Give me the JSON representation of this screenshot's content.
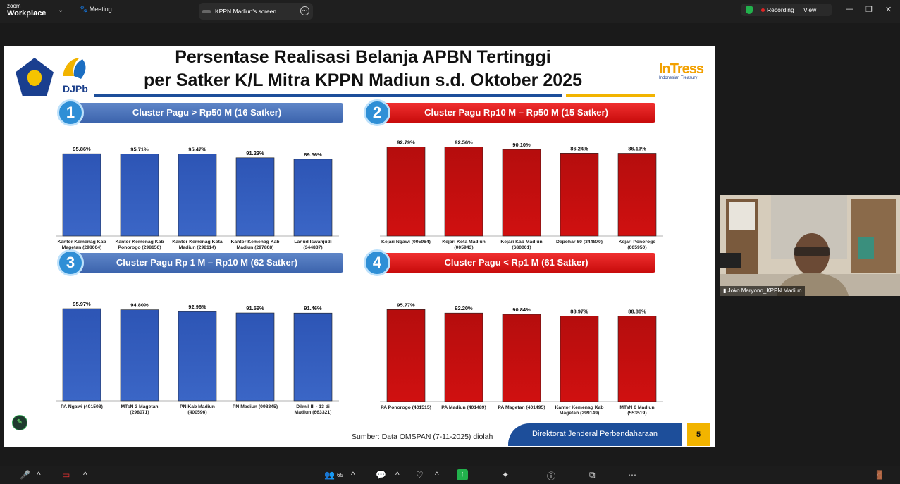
{
  "app": {
    "brand_top": "zoom",
    "brand_bottom": "Workplace",
    "meeting_label": "Meeting",
    "share_tab": "KPPN Madiun's screen",
    "recording": "Recording",
    "view": "View"
  },
  "slide": {
    "title_line1": "Persentase Realisasi Belanja APBN Tertinggi",
    "title_line2": "per Satker K/L Mitra KPPN Madiun s.d. Oktober 2025",
    "logo_djpb": "DJPb",
    "logo_intress": "InTress",
    "logo_intress_sub": "Indonesian Treasury",
    "source": "Sumber: Data OMSPAN (7-11-2025) diolah",
    "footer": "Direktorat Jenderal Perbendaharaan",
    "page_number": "5",
    "clusters": [
      {
        "num": "1",
        "label": "Cluster Pagu > Rp50 M (16 Satker)"
      },
      {
        "num": "2",
        "label": "Cluster Pagu Rp10 M – Rp50 M (15 Satker)"
      },
      {
        "num": "3",
        "label": "Cluster Pagu Rp 1 M – Rp10 M (62 Satker)"
      },
      {
        "num": "4",
        "label": "Cluster Pagu < Rp1 M (61 Satker)"
      }
    ]
  },
  "participant": {
    "name": "Joko Maryono_KPPN Madiun"
  },
  "toolbar": {
    "participants_count": "65"
  },
  "colors": {
    "blue_bar": "#2d55b5",
    "red_bar": "#b50d0d",
    "accent_blue": "#1d4e9a",
    "accent_gold": "#f2b400"
  },
  "chart_data": [
    {
      "type": "bar",
      "color": "blue",
      "categories": [
        [
          "Kantor Kemenag Kab",
          "Magetan (298004)"
        ],
        [
          "Kantor Kemenag Kab",
          "Ponorogo (298156)"
        ],
        [
          "Kantor Kemenag Kota",
          "Madiun (298114)"
        ],
        [
          "Kantor Kemenag Kab",
          "Madiun (297808)"
        ],
        [
          "Lanud Iswahjudi",
          "(344837)"
        ]
      ],
      "values": [
        95.86,
        95.71,
        95.47,
        91.23,
        89.56
      ],
      "labels": [
        "95.86%",
        "95.71%",
        "95.47%",
        "91.23%",
        "89.56%"
      ]
    },
    {
      "type": "bar",
      "color": "red",
      "categories": [
        [
          "Kejari Ngawi (005964)"
        ],
        [
          "Kejari Kota Madiun",
          "(005943)"
        ],
        [
          "Kejari Kab Madiun",
          "(680001)"
        ],
        [
          "Depohar 60 (344870)"
        ],
        [
          "Kejari Ponorogo",
          "(005950)"
        ]
      ],
      "values": [
        92.79,
        92.56,
        90.1,
        86.24,
        86.13
      ],
      "labels": [
        "92.79%",
        "92.56%",
        "90.10%",
        "86.24%",
        "86.13%"
      ]
    },
    {
      "type": "bar",
      "color": "blue",
      "categories": [
        [
          "PA Ngawi (401508)"
        ],
        [
          "MTsN 3 Magetan",
          "(298071)"
        ],
        [
          "PN Kab Madiun",
          "(400596)"
        ],
        [
          "PN Madiun (098345)"
        ],
        [
          "Dilmil III - 13 di",
          "Madiun (663321)"
        ]
      ],
      "values": [
        95.97,
        94.8,
        92.96,
        91.59,
        91.46
      ],
      "labels": [
        "95.97%",
        "94.80%",
        "92.96%",
        "91.59%",
        "91.46%"
      ]
    },
    {
      "type": "bar",
      "color": "red",
      "categories": [
        [
          "PA Ponorogo (401515)"
        ],
        [
          "PA Madiun (401489)"
        ],
        [
          "PA Magetan (401495)"
        ],
        [
          "Kantor Kemenag Kab",
          "Magetan (299149)"
        ],
        [
          "MTsN 6 Madiun",
          "(553519)"
        ]
      ],
      "values": [
        95.77,
        92.2,
        90.84,
        88.97,
        88.86
      ],
      "labels": [
        "95.77%",
        "92.20%",
        "90.84%",
        "88.97%",
        "88.86%"
      ]
    }
  ]
}
